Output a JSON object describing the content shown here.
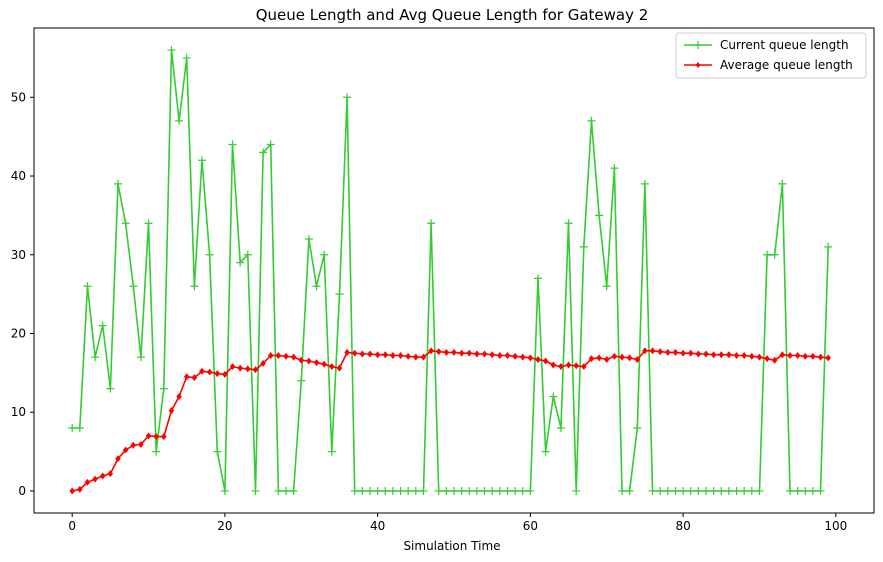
{
  "chart_data": {
    "type": "line",
    "title": "Queue Length and Avg Queue Length for Gateway 2",
    "xlabel": "Simulation Time",
    "ylabel": "",
    "xlim": [
      -5,
      105
    ],
    "ylim": [
      -2.8,
      58.8
    ],
    "xticks": [
      0,
      20,
      40,
      60,
      80,
      100
    ],
    "yticks": [
      0,
      10,
      20,
      30,
      40,
      50
    ],
    "grid": false,
    "legend": "top-right",
    "x": [
      0,
      1,
      2,
      3,
      4,
      5,
      6,
      7,
      8,
      9,
      10,
      11,
      12,
      13,
      14,
      15,
      16,
      17,
      18,
      19,
      20,
      21,
      22,
      23,
      24,
      25,
      26,
      27,
      28,
      29,
      30,
      31,
      32,
      33,
      34,
      35,
      36,
      37,
      38,
      39,
      40,
      41,
      42,
      43,
      44,
      45,
      46,
      47,
      48,
      49,
      50,
      51,
      52,
      53,
      54,
      55,
      56,
      57,
      58,
      59,
      60,
      61,
      62,
      63,
      64,
      65,
      66,
      67,
      68,
      69,
      70,
      71,
      72,
      73,
      74,
      75,
      76,
      77,
      78,
      79,
      80,
      81,
      82,
      83,
      84,
      85,
      86,
      87,
      88,
      89,
      90,
      91,
      92,
      93,
      94,
      95,
      96,
      97,
      98,
      99
    ],
    "series": [
      {
        "name": "Current queue length",
        "color": "#33cc33",
        "marker": "plus",
        "values": [
          8,
          8,
          26,
          17,
          21,
          13,
          39,
          34,
          26,
          17,
          34,
          5,
          13,
          56,
          47,
          55,
          26,
          42,
          30,
          5,
          0,
          44,
          29,
          30,
          0,
          43,
          44,
          0,
          0,
          0,
          14,
          32,
          26,
          30,
          5,
          25,
          50,
          0,
          0,
          0,
          0,
          0,
          0,
          0,
          0,
          0,
          0,
          34,
          0,
          0,
          0,
          0,
          0,
          0,
          0,
          0,
          0,
          0,
          0,
          0,
          0,
          27,
          5,
          12,
          8,
          34,
          0,
          31,
          47,
          35,
          26,
          41,
          0,
          0,
          8,
          39,
          0,
          0,
          0,
          0,
          0,
          0,
          0,
          0,
          0,
          0,
          0,
          0,
          0,
          0,
          0,
          30,
          30,
          39,
          0,
          0,
          0,
          0,
          0,
          31
        ]
      },
      {
        "name": "Average queue length",
        "color": "#ff0000",
        "marker": "diamond",
        "values": [
          0,
          0.2,
          1.1,
          1.5,
          1.9,
          2.2,
          4.1,
          5.2,
          5.8,
          5.9,
          7.0,
          6.9,
          6.9,
          10.2,
          12.0,
          14.5,
          14.4,
          15.2,
          15.1,
          14.9,
          14.8,
          15.8,
          15.6,
          15.5,
          15.4,
          16.2,
          17.2,
          17.2,
          17.1,
          17.0,
          16.6,
          16.5,
          16.3,
          16.1,
          15.8,
          15.6,
          17.6,
          17.5,
          17.4,
          17.4,
          17.3,
          17.3,
          17.2,
          17.2,
          17.1,
          17.0,
          17.0,
          17.8,
          17.7,
          17.6,
          17.6,
          17.5,
          17.5,
          17.4,
          17.4,
          17.3,
          17.2,
          17.2,
          17.1,
          17.0,
          16.9,
          16.7,
          16.5,
          16.0,
          15.8,
          16.0,
          15.9,
          15.8,
          16.8,
          16.9,
          16.7,
          17.1,
          17.0,
          16.9,
          16.7,
          17.8,
          17.8,
          17.7,
          17.6,
          17.6,
          17.5,
          17.5,
          17.4,
          17.4,
          17.3,
          17.3,
          17.3,
          17.2,
          17.2,
          17.1,
          17.0,
          16.8,
          16.6,
          17.3,
          17.2,
          17.2,
          17.1,
          17.1,
          17.0,
          16.9
        ]
      }
    ]
  }
}
